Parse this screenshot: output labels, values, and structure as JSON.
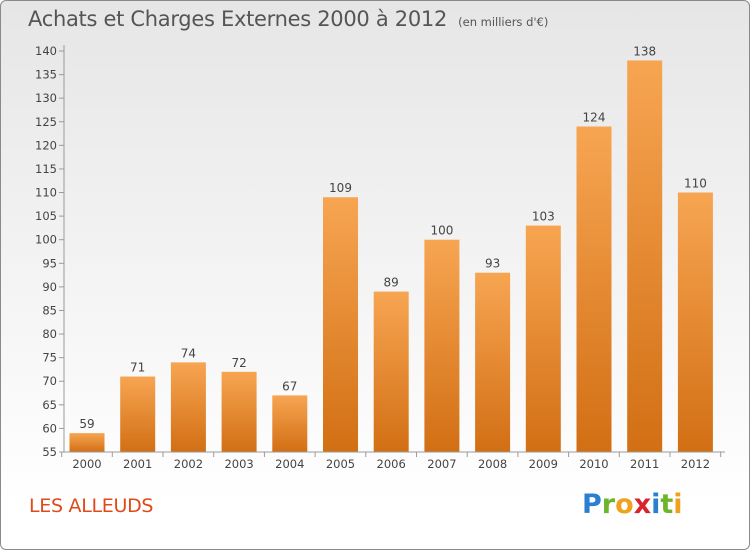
{
  "header": {
    "title": "Achats et Charges Externes 2000 à 2012",
    "subtitle": "(en milliers d'€)"
  },
  "place_label": "LES ALLEUDS",
  "logo": {
    "text": "Proxiti",
    "letters": [
      "P",
      "r",
      "o",
      "x",
      "i",
      "t",
      "i"
    ]
  },
  "colors": {
    "bar_light": "#f7a552",
    "bar_dark": "#d26f14",
    "title": "#555555",
    "place": "#e04a1a"
  },
  "chart_data": {
    "type": "bar",
    "title": "Achats et Charges Externes 2000 à 2012",
    "subtitle": "(en milliers d'€)",
    "xlabel": "",
    "ylabel": "",
    "categories": [
      "2000",
      "2001",
      "2002",
      "2003",
      "2004",
      "2005",
      "2006",
      "2007",
      "2008",
      "2009",
      "2010",
      "2011",
      "2012"
    ],
    "values": [
      59,
      71,
      74,
      72,
      67,
      109,
      89,
      100,
      93,
      103,
      124,
      138,
      110
    ],
    "ylim": [
      55,
      140
    ],
    "yticks": [
      55,
      60,
      65,
      70,
      75,
      80,
      85,
      90,
      95,
      100,
      105,
      110,
      115,
      120,
      125,
      130,
      135,
      140
    ],
    "grid": false,
    "data_labels": true
  }
}
